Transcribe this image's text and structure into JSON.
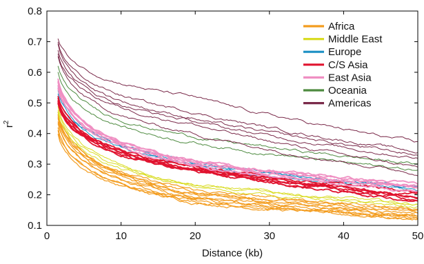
{
  "chart_data": {
    "type": "line",
    "xlabel": "Distance (kb)",
    "ylabel_base": "r",
    "ylabel_sup": "2",
    "xlim": [
      0,
      50
    ],
    "ylim": [
      0.1,
      0.8
    ],
    "xticks": [
      0,
      10,
      20,
      30,
      40,
      50
    ],
    "yticks": [
      0.1,
      0.2,
      0.3,
      0.4,
      0.5,
      0.6,
      0.7,
      0.8
    ],
    "grid": false,
    "legend_position": "top-right",
    "groups": [
      {
        "name": "Africa",
        "color": "#f39c1e",
        "width": 1.2,
        "curves": [
          [
            0.47,
            0.205,
            0.145
          ],
          [
            0.45,
            0.195,
            0.135
          ],
          [
            0.44,
            0.19,
            0.132
          ],
          [
            0.43,
            0.185,
            0.128
          ],
          [
            0.42,
            0.18,
            0.125
          ],
          [
            0.41,
            0.178,
            0.123
          ],
          [
            0.4,
            0.175,
            0.12
          ],
          [
            0.46,
            0.2,
            0.142
          ],
          [
            0.455,
            0.21,
            0.15
          ],
          [
            0.465,
            0.215,
            0.155
          ]
        ]
      },
      {
        "name": "Middle East",
        "color": "#d9dc24",
        "width": 1.0,
        "curves": [
          [
            0.49,
            0.235,
            0.17
          ],
          [
            0.47,
            0.225,
            0.16
          ],
          [
            0.48,
            0.23,
            0.165
          ]
        ]
      },
      {
        "name": "Europe",
        "color": "#1a8fc4",
        "width": 1.0,
        "curves": [
          [
            0.54,
            0.3,
            0.22
          ],
          [
            0.53,
            0.295,
            0.215
          ],
          [
            0.55,
            0.305,
            0.225
          ]
        ]
      },
      {
        "name": "C/S Asia",
        "color": "#e0132f",
        "width": 1.8,
        "curves": [
          [
            0.51,
            0.285,
            0.19
          ],
          [
            0.5,
            0.28,
            0.185
          ],
          [
            0.52,
            0.29,
            0.195
          ],
          [
            0.505,
            0.285,
            0.2
          ],
          [
            0.515,
            0.29,
            0.21
          ],
          [
            0.5,
            0.278,
            0.18
          ]
        ]
      },
      {
        "name": "East Asia",
        "color": "#ef8fc2",
        "width": 1.8,
        "curves": [
          [
            0.58,
            0.31,
            0.23
          ],
          [
            0.57,
            0.305,
            0.225
          ],
          [
            0.56,
            0.3,
            0.22
          ],
          [
            0.55,
            0.295,
            0.21
          ],
          [
            0.575,
            0.31,
            0.235
          ]
        ]
      },
      {
        "name": "Oceania",
        "color": "#4d8a3f",
        "width": 1.0,
        "curves": [
          [
            0.62,
            0.39,
            0.3
          ],
          [
            0.6,
            0.37,
            0.28
          ]
        ]
      },
      {
        "name": "Americas",
        "color": "#7a2a4a",
        "width": 1.0,
        "curves": [
          [
            0.71,
            0.52,
            0.37
          ],
          [
            0.7,
            0.47,
            0.34
          ],
          [
            0.69,
            0.45,
            0.33
          ],
          [
            0.66,
            0.43,
            0.29
          ],
          [
            0.65,
            0.4,
            0.27
          ],
          [
            0.67,
            0.44,
            0.32
          ]
        ]
      }
    ]
  }
}
